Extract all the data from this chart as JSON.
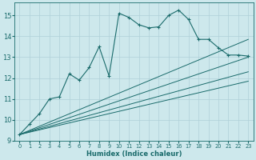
{
  "xlabel": "Humidex (Indice chaleur)",
  "background_color": "#cde8ec",
  "grid_color": "#b0d0d8",
  "line_color": "#1a6b6b",
  "xlim": [
    -0.5,
    23.5
  ],
  "ylim": [
    9,
    15.6
  ],
  "yticks": [
    9,
    10,
    11,
    12,
    13,
    14,
    15
  ],
  "xticks": [
    0,
    1,
    2,
    3,
    4,
    5,
    6,
    7,
    8,
    9,
    10,
    11,
    12,
    13,
    14,
    15,
    16,
    17,
    18,
    19,
    20,
    21,
    22,
    23
  ],
  "main_x": [
    0,
    1,
    2,
    3,
    4,
    5,
    6,
    7,
    8,
    9,
    10,
    11,
    12,
    13,
    14,
    15,
    16,
    17,
    18,
    19,
    20,
    21,
    22,
    23
  ],
  "main_y": [
    9.3,
    9.8,
    10.3,
    11.0,
    11.1,
    12.2,
    11.9,
    12.5,
    13.5,
    12.1,
    15.1,
    14.9,
    14.55,
    14.4,
    14.45,
    15.0,
    15.25,
    14.8,
    13.85,
    13.85,
    13.45,
    13.1,
    13.1,
    13.05
  ],
  "line1_x": [
    0,
    23
  ],
  "line1_y": [
    9.3,
    11.85
  ],
  "line2_x": [
    0,
    23
  ],
  "line2_y": [
    9.3,
    12.3
  ],
  "line3_x": [
    0,
    23
  ],
  "line3_y": [
    9.3,
    13.0
  ],
  "line4_x": [
    0,
    23
  ],
  "line4_y": [
    9.3,
    13.85
  ]
}
